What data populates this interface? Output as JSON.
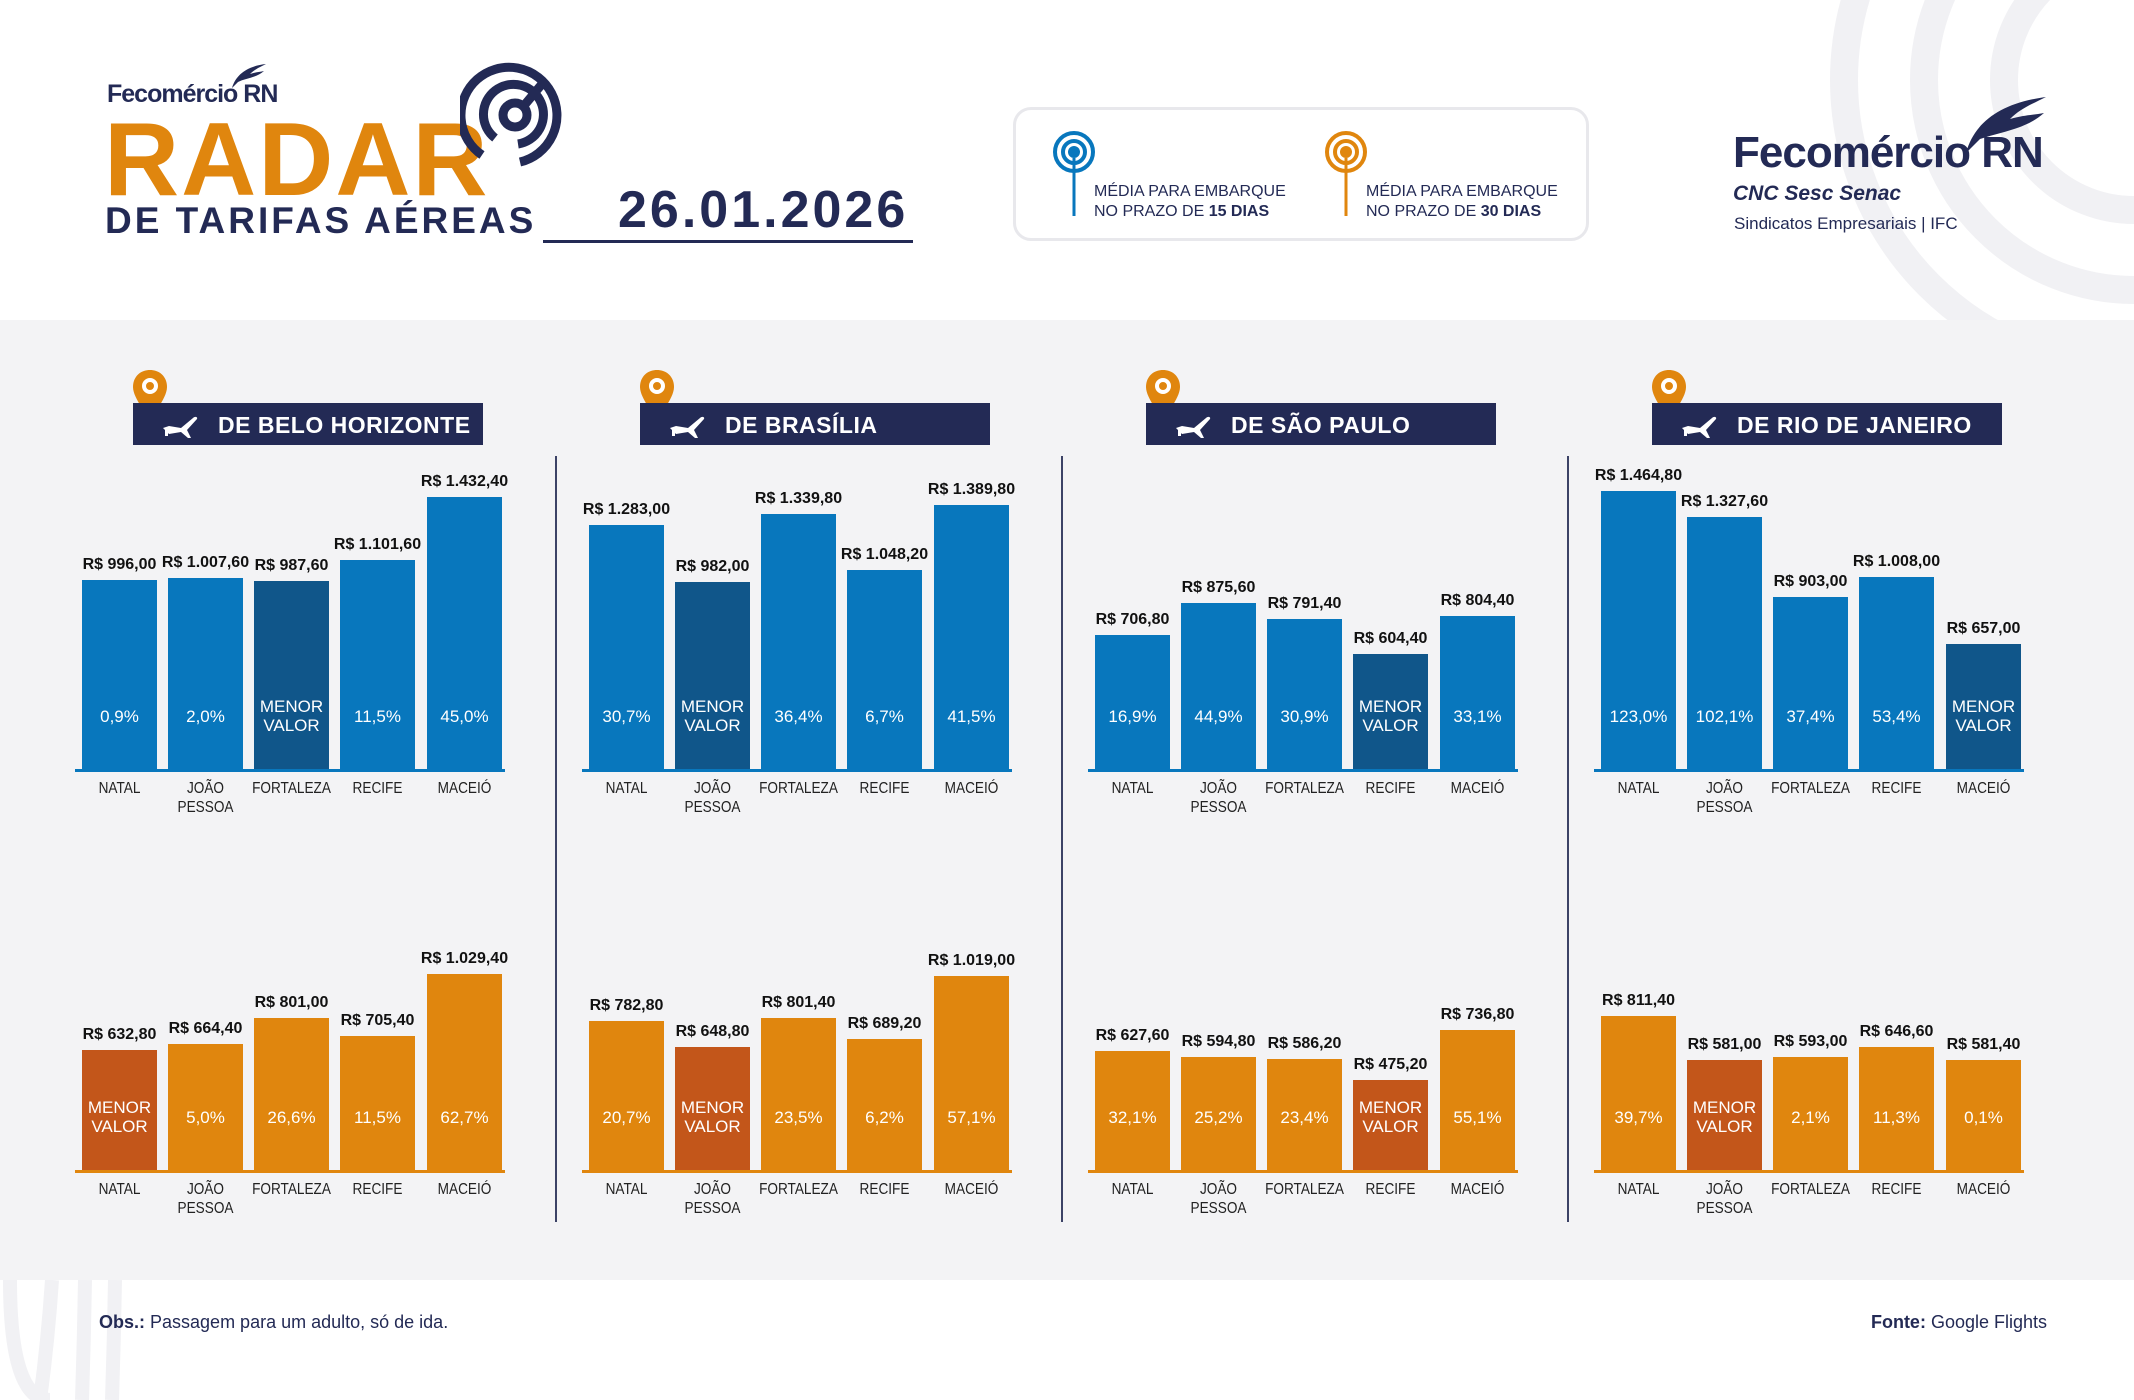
{
  "header": {
    "org_logo": "Fecomércio RN",
    "title": "RADAR",
    "subtitle": "DE TARIFAS AÉREAS",
    "date": "26.01.2026"
  },
  "legend": {
    "items": [
      {
        "line1": "MÉDIA PARA EMBARQUE",
        "line2_prefix": "NO PRAZO DE ",
        "line2_bold": "15 DIAS",
        "color": "#0877bd",
        "icon": "radar-pin-icon"
      },
      {
        "line1": "MÉDIA PARA EMBARQUE",
        "line2_prefix": "NO PRAZO DE ",
        "line2_bold": "30 DIAS",
        "color": "#e0860e",
        "icon": "radar-pin-icon"
      }
    ]
  },
  "brand": {
    "name": "Fecomércio RN",
    "partners": "CNC Sesc Senac",
    "tagline": "Sindicatos Empresariais  |  IFC"
  },
  "colors": {
    "blue": "#0877bd",
    "blue_lowest": "#10568a",
    "orange": "#e0860e",
    "orange_lowest": "#c3561a",
    "navy": "#232a55",
    "panel_bg": "#f3f3f5"
  },
  "lowest_label": [
    "MENOR",
    "VALOR"
  ],
  "chart_data": [
    {
      "type": "bar",
      "title": "DE BELO HORIZONTE",
      "series": "15 dias",
      "categories": [
        "NATAL",
        "JOÃO PESSOA",
        "FORTALEZA",
        "RECIFE",
        "MACEIÓ"
      ],
      "values": [
        996.0,
        1007.6,
        987.6,
        1101.6,
        1432.4
      ],
      "price_labels": [
        "R$ 996,00",
        "R$ 1.007,60",
        "R$ 987,60",
        "R$ 1.101,60",
        "R$ 1.432,40"
      ],
      "pct_labels": [
        "0,9%",
        "2,0%",
        null,
        "11,5%",
        "45,0%"
      ],
      "lowest_index": 2
    },
    {
      "type": "bar",
      "title": "DE BELO HORIZONTE",
      "series": "30 dias",
      "categories": [
        "NATAL",
        "JOÃO PESSOA",
        "FORTALEZA",
        "RECIFE",
        "MACEIÓ"
      ],
      "values": [
        632.8,
        664.4,
        801.0,
        705.4,
        1029.4
      ],
      "price_labels": [
        "R$ 632,80",
        "R$ 664,40",
        "R$ 801,00",
        "R$ 705,40",
        "R$ 1.029,40"
      ],
      "pct_labels": [
        null,
        "5,0%",
        "26,6%",
        "11,5%",
        "62,7%"
      ],
      "lowest_index": 0
    },
    {
      "type": "bar",
      "title": "DE BRASÍLIA",
      "series": "15 dias",
      "categories": [
        "NATAL",
        "JOÃO PESSOA",
        "FORTALEZA",
        "RECIFE",
        "MACEIÓ"
      ],
      "values": [
        1283.0,
        982.0,
        1339.8,
        1048.2,
        1389.8
      ],
      "price_labels": [
        "R$ 1.283,00",
        "R$ 982,00",
        "R$ 1.339,80",
        "R$ 1.048,20",
        "R$ 1.389,80"
      ],
      "pct_labels": [
        "30,7%",
        null,
        "36,4%",
        "6,7%",
        "41,5%"
      ],
      "lowest_index": 1
    },
    {
      "type": "bar",
      "title": "DE BRASÍLIA",
      "series": "30 dias",
      "categories": [
        "NATAL",
        "JOÃO PESSOA",
        "FORTALEZA",
        "RECIFE",
        "MACEIÓ"
      ],
      "values": [
        782.8,
        648.8,
        801.4,
        689.2,
        1019.0
      ],
      "price_labels": [
        "R$ 782,80",
        "R$ 648,80",
        "R$ 801,40",
        "R$ 689,20",
        "R$ 1.019,00"
      ],
      "pct_labels": [
        "20,7%",
        null,
        "23,5%",
        "6,2%",
        "57,1%"
      ],
      "lowest_index": 1
    },
    {
      "type": "bar",
      "title": "DE SÃO PAULO",
      "series": "15 dias",
      "categories": [
        "NATAL",
        "JOÃO PESSOA",
        "FORTALEZA",
        "RECIFE",
        "MACEIÓ"
      ],
      "values": [
        706.8,
        875.6,
        791.4,
        604.4,
        804.4
      ],
      "price_labels": [
        "R$ 706,80",
        "R$ 875,60",
        "R$ 791,40",
        "R$ 604,40",
        "R$ 804,40"
      ],
      "pct_labels": [
        "16,9%",
        "44,9%",
        "30,9%",
        null,
        "33,1%"
      ],
      "lowest_index": 3
    },
    {
      "type": "bar",
      "title": "DE SÃO PAULO",
      "series": "30 dias",
      "categories": [
        "NATAL",
        "JOÃO PESSOA",
        "FORTALEZA",
        "RECIFE",
        "MACEIÓ"
      ],
      "values": [
        627.6,
        594.8,
        586.2,
        475.2,
        736.8
      ],
      "price_labels": [
        "R$ 627,60",
        "R$ 594,80",
        "R$ 586,20",
        "R$ 475,20",
        "R$ 736,80"
      ],
      "pct_labels": [
        "32,1%",
        "25,2%",
        "23,4%",
        null,
        "55,1%"
      ],
      "lowest_index": 3
    },
    {
      "type": "bar",
      "title": "DE RIO DE JANEIRO",
      "series": "15 dias",
      "categories": [
        "NATAL",
        "JOÃO PESSOA",
        "FORTALEZA",
        "RECIFE",
        "MACEIÓ"
      ],
      "values": [
        1464.8,
        1327.6,
        903.0,
        1008.0,
        657.0
      ],
      "price_labels": [
        "R$ 1.464,80",
        "R$ 1.327,60",
        "R$ 903,00",
        "R$ 1.008,00",
        "R$ 657,00"
      ],
      "pct_labels": [
        "123,0%",
        "102,1%",
        "37,4%",
        "53,4%",
        null
      ],
      "lowest_index": 4
    },
    {
      "type": "bar",
      "title": "DE RIO DE JANEIRO",
      "series": "30 dias",
      "categories": [
        "NATAL",
        "JOÃO PESSOA",
        "FORTALEZA",
        "RECIFE",
        "MACEIÓ"
      ],
      "values": [
        811.4,
        581.0,
        593.0,
        646.6,
        581.4
      ],
      "price_labels": [
        "R$ 811,40",
        "R$ 581,00",
        "R$ 593,00",
        "R$ 646,60",
        "R$ 581,40"
      ],
      "pct_labels": [
        "39,7%",
        null,
        "2,1%",
        "11,3%",
        "0,1%"
      ],
      "lowest_index": 1
    }
  ],
  "panels": [
    {
      "title": "DE BELO HORIZONTE"
    },
    {
      "title": "DE BRASÍLIA"
    },
    {
      "title": "DE SÃO PAULO"
    },
    {
      "title": "DE RIO DE JANEIRO"
    }
  ],
  "footer": {
    "obs_label": "Obs.:",
    "obs_text": " Passagem para um adulto, só de ida.",
    "source_label": "Fonte:",
    "source_text": " Google Flights"
  }
}
